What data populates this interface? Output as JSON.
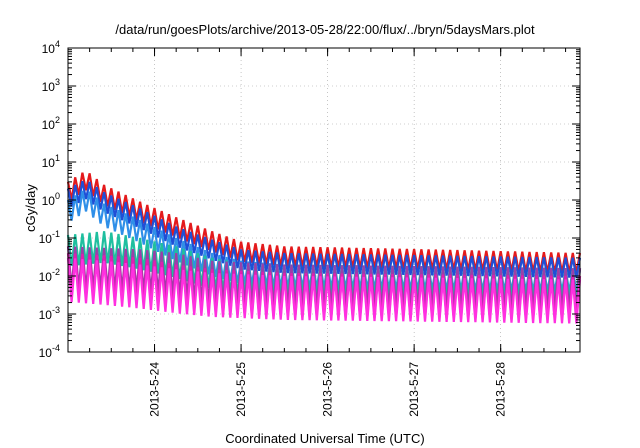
{
  "chart_data": {
    "type": "line",
    "title": "/data/run/goesPlots/archive/2013-05-28/22:00/flux/../bryn/5daysMars.plot",
    "xlabel": "Coordinated Universal Time (UTC)",
    "ylabel": "cGy/day",
    "yscale": "log",
    "ylim": [
      0.0001,
      10000
    ],
    "xlim": [
      "2013-05-23 00:00",
      "2013-05-28 22:00"
    ],
    "x_ticks": [
      "2013-5-24",
      "2013-5-25",
      "2013-5-26",
      "2013-5-27",
      "2013-5-28"
    ],
    "y_ticks": [
      {
        "base": "10",
        "exp": "-4"
      },
      {
        "base": "10",
        "exp": "-3"
      },
      {
        "base": "10",
        "exp": "-2"
      },
      {
        "base": "10",
        "exp": "-1"
      },
      {
        "base": "10",
        "exp": "0"
      },
      {
        "base": "10",
        "exp": "1"
      },
      {
        "base": "10",
        "exp": "2"
      },
      {
        "base": "10",
        "exp": "3"
      },
      {
        "base": "10",
        "exp": "4"
      }
    ],
    "grid": true,
    "legend": "none",
    "sawtooth_period_hours": 2,
    "series": [
      {
        "color": "#e41a1c",
        "envelope": [
          [
            0,
            3.0
          ],
          [
            5,
            6.0
          ],
          [
            10,
            2.5
          ],
          [
            20,
            0.9
          ],
          [
            30,
            0.35
          ],
          [
            40,
            0.15
          ],
          [
            48,
            0.08
          ],
          [
            60,
            0.06
          ],
          [
            100,
            0.05
          ],
          [
            142,
            0.04
          ]
        ],
        "trough_ratio": 0.3
      },
      {
        "color": "#1f4fd6",
        "envelope": [
          [
            0,
            2.0
          ],
          [
            5,
            3.5
          ],
          [
            10,
            1.6
          ],
          [
            20,
            0.6
          ],
          [
            30,
            0.2
          ],
          [
            40,
            0.09
          ],
          [
            48,
            0.05
          ],
          [
            60,
            0.04
          ],
          [
            100,
            0.035
          ],
          [
            142,
            0.03
          ]
        ],
        "trough_ratio": 0.3
      },
      {
        "color": "#2f8fe8",
        "envelope": [
          [
            0,
            1.0
          ],
          [
            5,
            2.0
          ],
          [
            10,
            0.8
          ],
          [
            20,
            0.3
          ],
          [
            30,
            0.1
          ],
          [
            40,
            0.04
          ],
          [
            48,
            0.025
          ],
          [
            60,
            0.02
          ],
          [
            100,
            0.017
          ],
          [
            142,
            0.015
          ]
        ],
        "trough_ratio": 0.25
      },
      {
        "color": "#1fbf9f",
        "envelope": [
          [
            0,
            0.12
          ],
          [
            10,
            0.15
          ],
          [
            20,
            0.1
          ],
          [
            30,
            0.06
          ],
          [
            40,
            0.03
          ],
          [
            48,
            0.022
          ],
          [
            60,
            0.02
          ],
          [
            100,
            0.018
          ],
          [
            142,
            0.016
          ]
        ],
        "trough_ratio": 0.15
      },
      {
        "color": "#9b3fa8",
        "envelope": [
          [
            0,
            0.06
          ],
          [
            10,
            0.055
          ],
          [
            20,
            0.05
          ],
          [
            30,
            0.04
          ],
          [
            40,
            0.025
          ],
          [
            60,
            0.02
          ],
          [
            100,
            0.018
          ],
          [
            142,
            0.016
          ]
        ],
        "trough_ratio": 0.08
      },
      {
        "color": "#e020b0",
        "envelope": [
          [
            0,
            0.04
          ],
          [
            10,
            0.035
          ],
          [
            20,
            0.03
          ],
          [
            30,
            0.02
          ],
          [
            40,
            0.015
          ],
          [
            60,
            0.012
          ],
          [
            100,
            0.011
          ],
          [
            142,
            0.01
          ]
        ],
        "trough_ratio": 0.07
      },
      {
        "color": "#ff30e0",
        "envelope": [
          [
            0,
            0.03
          ],
          [
            10,
            0.025
          ],
          [
            20,
            0.02
          ],
          [
            30,
            0.015
          ],
          [
            40,
            0.012
          ],
          [
            60,
            0.01
          ],
          [
            100,
            0.009
          ],
          [
            142,
            0.008
          ]
        ],
        "trough_ratio": 0.07
      }
    ]
  }
}
